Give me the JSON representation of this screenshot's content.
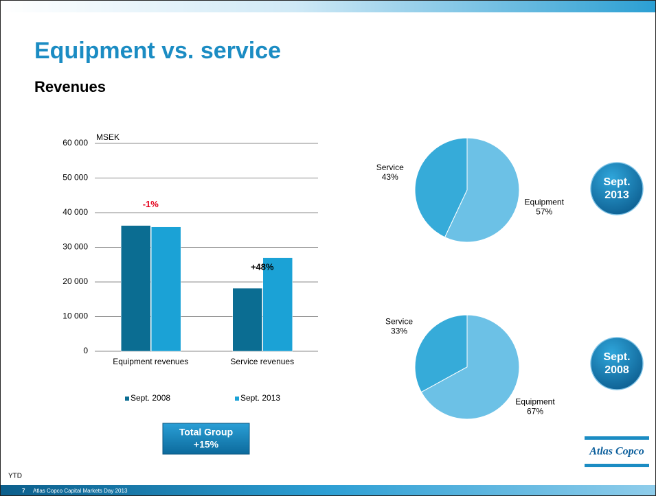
{
  "slide": {
    "title": "Equipment vs. service",
    "subtitle": "Revenues",
    "note": "YTD",
    "page": "7",
    "footer": "Atlas Copco Capital Markets Day 2013",
    "total_badge": [
      "Total Group",
      "+15%"
    ],
    "logo": "Atlas Copco"
  },
  "chart_data": [
    {
      "type": "bar",
      "y_label": "MSEK",
      "categories": [
        "Equipment revenues",
        "Service revenues"
      ],
      "series": [
        {
          "name": "Sept. 2008",
          "color": "#0b6d92",
          "values": [
            36300,
            18200
          ]
        },
        {
          "name": "Sept. 2013",
          "color": "#1ba2d6",
          "values": [
            35900,
            27000
          ]
        }
      ],
      "annotations": [
        {
          "text": "-1%",
          "color": "#e3001b"
        },
        {
          "text": "+48%",
          "color": "#000000"
        }
      ],
      "ylim": [
        0,
        60000
      ],
      "yticks": [
        0,
        {
          "value": 10000,
          "label": "10 000"
        },
        {
          "value": 20000,
          "label": "20 000"
        },
        {
          "value": 30000,
          "label": "30 000"
        },
        {
          "value": 40000,
          "label": "40 000"
        },
        {
          "value": 50000,
          "label": "50 000"
        },
        {
          "value": 60000,
          "label": "60 000"
        }
      ],
      "grid": true
    },
    {
      "type": "pie",
      "categories": [
        "Service",
        "Equipment"
      ],
      "values": [
        43,
        57
      ],
      "value_labels": [
        "43%",
        "57%"
      ],
      "colors": [
        "#36abd9",
        "#6cc1e6"
      ],
      "badge": [
        "Sept.",
        "2013"
      ]
    },
    {
      "type": "pie",
      "categories": [
        "Service",
        "Equipment"
      ],
      "values": [
        33,
        67
      ],
      "value_labels": [
        "33%",
        "67%"
      ],
      "colors": [
        "#36abd9",
        "#6cc1e6"
      ],
      "badge": [
        "Sept.",
        "2008"
      ]
    }
  ]
}
